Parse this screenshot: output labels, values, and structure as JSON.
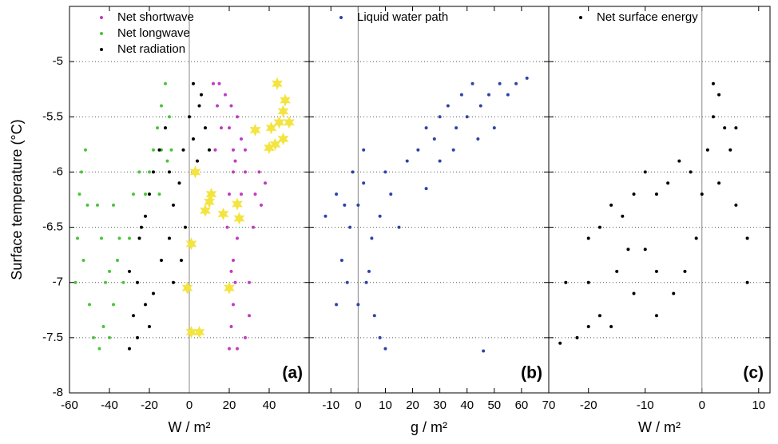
{
  "chart_data": [
    {
      "type": "scatter",
      "panel_label": "(a)",
      "xlabel": "W / m²",
      "ylabel": "Surface temperature (°C)",
      "xlim": [
        -60,
        60
      ],
      "xticks": [
        -60,
        -40,
        -20,
        0,
        20,
        40
      ],
      "ylim": [
        -8,
        -4.5
      ],
      "yticks": [
        -8,
        -7.5,
        -7,
        -6.5,
        -6,
        -5.5,
        -5
      ],
      "grid": true,
      "series": [
        {
          "name": "Net shortwave",
          "color": "#c03cc0",
          "marker": "dot",
          "x": [
            20,
            21,
            22,
            23,
            22,
            24,
            25,
            26,
            28,
            30,
            32,
            33,
            35,
            30,
            28,
            24,
            21,
            19,
            20,
            22,
            22,
            20,
            21,
            24,
            26,
            28,
            23,
            12,
            14,
            16,
            18,
            15,
            13,
            36,
            38
          ],
          "y": [
            -7.6,
            -7.4,
            -7.2,
            -7.0,
            -6.8,
            -6.6,
            -6.4,
            -6.2,
            -6.0,
            -7.0,
            -6.5,
            -6.2,
            -6.0,
            -7.3,
            -7.5,
            -7.6,
            -6.9,
            -6.5,
            -6.2,
            -6.0,
            -5.8,
            -5.6,
            -5.4,
            -5.5,
            -5.7,
            -5.8,
            -5.9,
            -5.2,
            -5.4,
            -5.6,
            -5.3,
            -5.2,
            -5.8,
            -6.3,
            -6.1
          ]
        },
        {
          "name": "Net longwave",
          "color": "#4cc43c",
          "marker": "dot",
          "x": [
            -57,
            -56,
            -55,
            -54,
            -52,
            -51,
            -53,
            -50,
            -48,
            -45,
            -43,
            -42,
            -44,
            -46,
            -40,
            -38,
            -36,
            -38,
            -35,
            -40,
            -33,
            -30,
            -28,
            -25,
            -22,
            -20,
            -18,
            -16,
            -14,
            -12,
            -10,
            -9,
            -11,
            -14,
            -15
          ],
          "y": [
            -7.0,
            -6.6,
            -6.2,
            -6.0,
            -5.8,
            -6.3,
            -6.8,
            -7.2,
            -7.5,
            -7.6,
            -7.4,
            -7.0,
            -6.6,
            -6.3,
            -6.9,
            -7.2,
            -6.8,
            -6.3,
            -6.6,
            -7.5,
            -7.0,
            -6.6,
            -6.2,
            -6.0,
            -6.2,
            -6.0,
            -5.8,
            -5.6,
            -5.4,
            -5.2,
            -5.5,
            -5.8,
            -5.9,
            -5.8,
            -6.2
          ]
        },
        {
          "name": "Net radiation",
          "color": "#000000",
          "marker": "dot",
          "x": [
            -30,
            -28,
            -26,
            -30,
            -25,
            -22,
            -20,
            -24,
            -18,
            -15,
            -12,
            -10,
            -20,
            -18,
            -14,
            -10,
            -8,
            -5,
            -22,
            -26,
            -3,
            0,
            2,
            5,
            8,
            10,
            4,
            2,
            6,
            -2,
            -4,
            -8
          ],
          "y": [
            -7.6,
            -7.3,
            -7.0,
            -6.9,
            -6.6,
            -6.4,
            -6.2,
            -6.5,
            -6.0,
            -5.8,
            -5.6,
            -6.0,
            -7.4,
            -7.1,
            -6.8,
            -6.6,
            -6.3,
            -6.1,
            -7.2,
            -7.5,
            -5.8,
            -5.5,
            -5.2,
            -5.4,
            -5.6,
            -5.8,
            -5.9,
            -5.7,
            -5.3,
            -6.5,
            -6.8,
            -7.0
          ]
        },
        {
          "color": "#f4e440",
          "marker": "star",
          "x": [
            44,
            48,
            47,
            45,
            50,
            41,
            47,
            43,
            40,
            33,
            3,
            1,
            -1,
            1,
            5,
            11,
            10,
            8,
            17,
            20,
            24,
            25
          ],
          "y": [
            -5.2,
            -5.35,
            -5.45,
            -5.55,
            -5.55,
            -5.6,
            -5.7,
            -5.75,
            -5.78,
            -5.62,
            -6.0,
            -6.65,
            -7.05,
            -7.45,
            -7.45,
            -6.2,
            -6.27,
            -6.35,
            -6.38,
            -7.05,
            -6.29,
            -6.42
          ]
        }
      ]
    },
    {
      "type": "scatter",
      "panel_label": "(b)",
      "xlabel": "g / m²",
      "xlim": [
        -18,
        70
      ],
      "xticks": [
        -10,
        0,
        10,
        20,
        30,
        40,
        50,
        60,
        70
      ],
      "ylim": [
        -8,
        -4.5
      ],
      "yticks": [
        -8,
        -7.5,
        -7,
        -6.5,
        -6,
        -5.5,
        -5
      ],
      "grid": true,
      "series": [
        {
          "name": "Liquid water path",
          "color": "#2c44a8",
          "marker": "dot",
          "x": [
            -12,
            -8,
            -5,
            -3,
            -2,
            0,
            2,
            5,
            -4,
            0,
            3,
            6,
            8,
            10,
            4,
            -6,
            -8,
            8,
            10,
            12,
            15,
            18,
            22,
            25,
            28,
            30,
            33,
            36,
            38,
            40,
            42,
            45,
            48,
            50,
            52,
            55,
            58,
            35,
            30,
            44,
            62,
            46,
            25,
            2
          ],
          "y": [
            -6.4,
            -6.2,
            -6.3,
            -6.5,
            -6.0,
            -6.3,
            -6.1,
            -6.6,
            -7.0,
            -7.2,
            -7.0,
            -7.3,
            -7.5,
            -7.6,
            -6.9,
            -6.8,
            -7.2,
            -6.4,
            -6.0,
            -6.2,
            -6.5,
            -5.9,
            -5.8,
            -5.6,
            -5.7,
            -5.5,
            -5.4,
            -5.6,
            -5.3,
            -5.5,
            -5.2,
            -5.4,
            -5.3,
            -5.6,
            -5.2,
            -5.3,
            -5.2,
            -5.8,
            -5.9,
            -5.7,
            -5.15,
            -7.62,
            -6.15,
            -5.8
          ]
        }
      ]
    },
    {
      "type": "scatter",
      "panel_label": "(c)",
      "xlabel": "W / m²",
      "xlim": [
        -27,
        12
      ],
      "xticks": [
        -20,
        -10,
        0,
        10
      ],
      "ylim": [
        -8,
        -4.5
      ],
      "yticks": [
        -8,
        -7.5,
        -7,
        -6.5,
        -6,
        -5.5,
        -5
      ],
      "grid": true,
      "series": [
        {
          "name": "Net surface energy",
          "color": "#000000",
          "marker": "dot",
          "x": [
            -25,
            -22,
            -20,
            -18,
            -16,
            -24,
            -20,
            -15,
            -13,
            -14,
            -16,
            -18,
            -12,
            -10,
            -8,
            -6,
            -4,
            -2,
            -10,
            -8,
            -5,
            -3,
            -1,
            0,
            1,
            2,
            3,
            4,
            5,
            2,
            3,
            6,
            8,
            8,
            6,
            -8,
            -12,
            -20
          ],
          "y": [
            -7.55,
            -7.5,
            -7.4,
            -7.3,
            -7.4,
            -7.0,
            -7.0,
            -6.9,
            -6.7,
            -6.4,
            -6.3,
            -6.5,
            -6.2,
            -6.0,
            -6.2,
            -6.1,
            -5.9,
            -6.0,
            -6.7,
            -6.9,
            -7.1,
            -6.9,
            -6.6,
            -6.2,
            -5.8,
            -5.5,
            -5.3,
            -5.6,
            -5.8,
            -5.2,
            -6.1,
            -6.3,
            -6.6,
            -7.0,
            -5.6,
            -7.3,
            -7.1,
            -6.6
          ]
        }
      ]
    }
  ]
}
